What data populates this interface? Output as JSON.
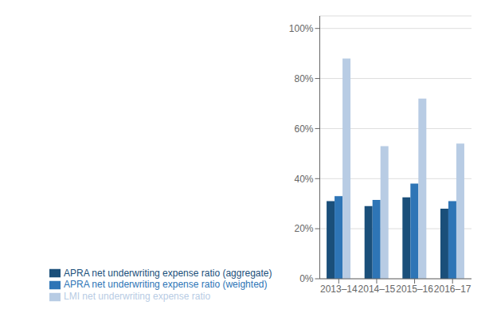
{
  "chart_data": {
    "type": "bar",
    "categories": [
      "2013–14",
      "2014–15",
      "2015–16",
      "2016–17"
    ],
    "series": [
      {
        "name": "APRA net underwriting expense ratio (aggregate)",
        "color": "#1a4f7a",
        "values": [
          0.31,
          0.29,
          0.325,
          0.28
        ]
      },
      {
        "name": "APRA net underwriting expense ratio (weighted)",
        "color": "#2e75b6",
        "values": [
          0.33,
          0.315,
          0.38,
          0.31
        ]
      },
      {
        "name": "LMI net underwriting expense ratio",
        "color": "#b8cce4",
        "values": [
          0.88,
          0.53,
          0.72,
          0.54
        ]
      }
    ],
    "ylim": [
      0,
      1.05
    ],
    "yticks": [
      {
        "value": 0,
        "label": "0%"
      },
      {
        "value": 0.2,
        "label": "20%"
      },
      {
        "value": 0.4,
        "label": "40%"
      },
      {
        "value": 0.6,
        "label": "60%"
      },
      {
        "value": 0.8,
        "label": "80%"
      },
      {
        "value": 1.0,
        "label": "100%"
      }
    ],
    "grid": true,
    "legend": "bottom"
  }
}
